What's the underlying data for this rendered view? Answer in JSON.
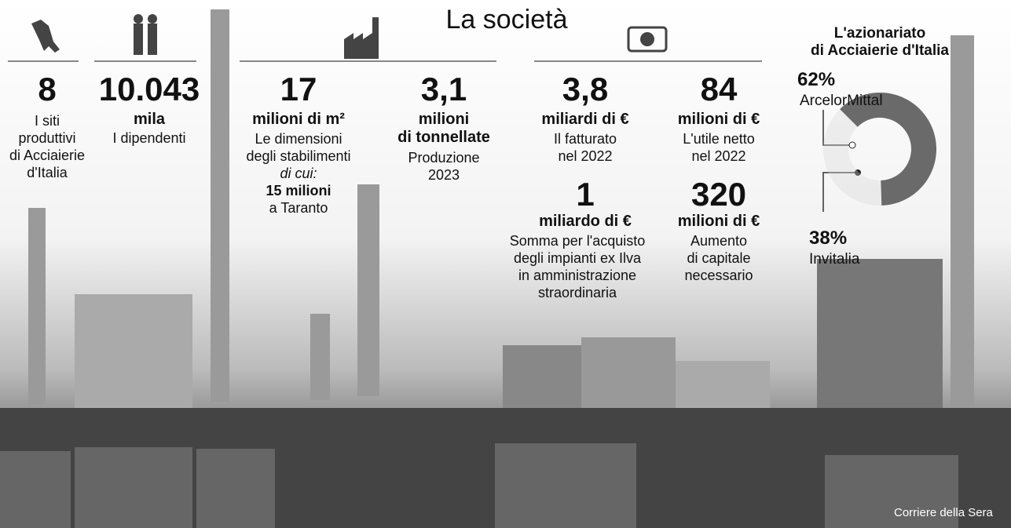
{
  "title": "La società",
  "stats": [
    {
      "number": "8",
      "lines": [
        "I siti",
        "produttivi",
        "di Acciaierie",
        "d'Italia"
      ]
    },
    {
      "number": "10.043",
      "unit": "mila",
      "lines": [
        "I dipendenti"
      ]
    },
    {
      "number": "17",
      "unit": "milioni di m²",
      "lines": [
        "Le dimensioni",
        "degli stabilimenti"
      ],
      "detail": {
        "label": "di cui:",
        "number": "15 milioni",
        "text": "a Taranto"
      }
    },
    {
      "number": "3,1",
      "unit": "milioni",
      "unit2": "di tonnellate",
      "lines": [
        "Produzione",
        "2023"
      ]
    },
    {
      "number": "3,8",
      "unit": "miliardi di €",
      "lines": [
        "Il fatturato",
        "nel 2022"
      ]
    },
    {
      "number": "84",
      "unit": "milioni di €",
      "lines": [
        "L'utile netto",
        "nel 2022"
      ]
    },
    {
      "number": "1",
      "unit": "miliardo di €",
      "lines": [
        "Somma per l'acquisto",
        "degli impianti ex Ilva",
        "in amministrazione",
        "straordinaria"
      ]
    },
    {
      "number": "320",
      "unit": "milioni di €",
      "lines": [
        "Aumento",
        "di capitale",
        "necessario"
      ]
    }
  ],
  "chart_data": {
    "type": "pie",
    "title": [
      "L'azionariato",
      "di Acciaierie d'Italia"
    ],
    "categories": [
      "ArcelorMittal",
      "Invitalia"
    ],
    "values": [
      62,
      38
    ],
    "value_labels": [
      "62%",
      "38%"
    ],
    "colors": [
      "#6a6a6a",
      "#d8d8d8"
    ]
  },
  "credit": "Corriere della Sera"
}
